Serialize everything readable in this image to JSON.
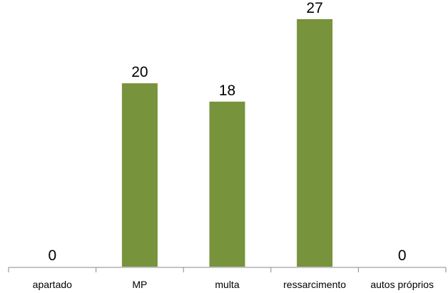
{
  "chart_data": {
    "type": "bar",
    "categories": [
      "apartado",
      "MP",
      "multa",
      "ressarcimento",
      "autos próprios"
    ],
    "values": [
      0,
      20,
      18,
      27,
      0
    ],
    "title": "",
    "xlabel": "",
    "ylabel": "",
    "ylim": [
      0,
      28
    ],
    "grid": false,
    "legend": "none",
    "data_labels": true,
    "colors": {
      "bar": "#77933c",
      "axis": "#898989"
    }
  }
}
